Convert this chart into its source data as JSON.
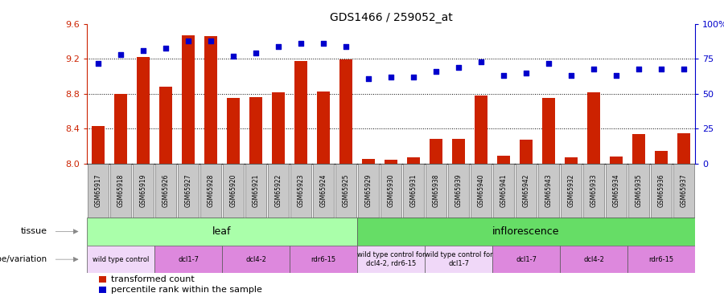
{
  "title": "GDS1466 / 259052_at",
  "samples": [
    "GSM65917",
    "GSM65918",
    "GSM65919",
    "GSM65926",
    "GSM65927",
    "GSM65928",
    "GSM65920",
    "GSM65921",
    "GSM65922",
    "GSM65923",
    "GSM65924",
    "GSM65925",
    "GSM65929",
    "GSM65930",
    "GSM65931",
    "GSM65938",
    "GSM65939",
    "GSM65940",
    "GSM65941",
    "GSM65942",
    "GSM65943",
    "GSM65932",
    "GSM65933",
    "GSM65934",
    "GSM65935",
    "GSM65936",
    "GSM65937"
  ],
  "bar_values": [
    8.43,
    8.8,
    9.22,
    8.88,
    9.47,
    9.46,
    8.75,
    8.76,
    8.82,
    9.18,
    8.83,
    9.19,
    8.05,
    8.04,
    8.07,
    8.28,
    8.28,
    8.78,
    8.09,
    8.27,
    8.75,
    8.07,
    8.82,
    8.08,
    8.34,
    8.14,
    8.35
  ],
  "dot_values": [
    72,
    78,
    81,
    83,
    88,
    88,
    77,
    79,
    84,
    86,
    86,
    84,
    61,
    62,
    62,
    66,
    69,
    73,
    63,
    65,
    72,
    63,
    68,
    63,
    68,
    68,
    68
  ],
  "ylim_left": [
    8.0,
    9.6
  ],
  "yticks_left": [
    8.0,
    8.4,
    8.8,
    9.2,
    9.6
  ],
  "yticks_right": [
    0,
    25,
    50,
    75,
    100
  ],
  "ytick_labels_right": [
    "0",
    "25",
    "50",
    "75",
    "100%"
  ],
  "tissue_groups": [
    {
      "label": "leaf",
      "start": 0,
      "end": 12,
      "color": "#AAFFAA"
    },
    {
      "label": "inflorescence",
      "start": 12,
      "end": 27,
      "color": "#66DD66"
    }
  ],
  "genotype_groups": [
    {
      "label": "wild type control",
      "start": 0,
      "end": 3,
      "color": "#F0D8F8"
    },
    {
      "label": "dcl1-7",
      "start": 3,
      "end": 6,
      "color": "#DD88DD"
    },
    {
      "label": "dcl4-2",
      "start": 6,
      "end": 9,
      "color": "#DD88DD"
    },
    {
      "label": "rdr6-15",
      "start": 9,
      "end": 12,
      "color": "#DD88DD"
    },
    {
      "label": "wild type control for\ndcl4-2, rdr6-15",
      "start": 12,
      "end": 15,
      "color": "#F0D8F8"
    },
    {
      "label": "wild type control for\ndcl1-7",
      "start": 15,
      "end": 18,
      "color": "#F0D8F8"
    },
    {
      "label": "dcl1-7",
      "start": 18,
      "end": 21,
      "color": "#DD88DD"
    },
    {
      "label": "dcl4-2",
      "start": 21,
      "end": 24,
      "color": "#DD88DD"
    },
    {
      "label": "rdr6-15",
      "start": 24,
      "end": 27,
      "color": "#DD88DD"
    }
  ],
  "bar_color": "#CC2200",
  "dot_color": "#0000CC",
  "sample_box_color": "#C8C8C8",
  "sample_box_edge": "#555555"
}
